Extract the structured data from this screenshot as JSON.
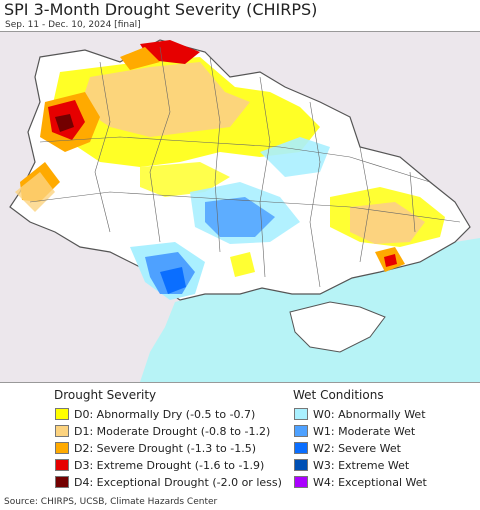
{
  "header": {
    "title": "SPI 3-Month Drought Severity (CHIRPS)",
    "subtitle": "Sep. 11 - Dec. 10, 2024 [final]"
  },
  "legend": {
    "drought_title": "Drought Severity",
    "wet_title": "Wet Conditions",
    "drought_items": [
      {
        "label": "D0: Abnormally Dry (-0.5 to -0.7)",
        "color": "#ffff00"
      },
      {
        "label": "D1: Moderate Drought (-0.8 to -1.2)",
        "color": "#fcd37f"
      },
      {
        "label": "D2: Severe Drought (-1.3 to -1.5)",
        "color": "#ffaa00"
      },
      {
        "label": "D3: Extreme Drought (-1.6 to -1.9)",
        "color": "#e60000"
      },
      {
        "label": "D4: Exceptional Drought (-2.0 or less)",
        "color": "#730000"
      }
    ],
    "wet_items": [
      {
        "label": "W0: Abnormally Wet",
        "color": "#aaf0ff"
      },
      {
        "label": "W1: Moderate Wet",
        "color": "#4ea1ff"
      },
      {
        "label": "W2: Severe Wet",
        "color": "#0a6eff"
      },
      {
        "label": "W3: Extreme Wet",
        "color": "#0050b4"
      },
      {
        "label": "W4: Exceptional Wet",
        "color": "#aa00ff"
      }
    ]
  },
  "map": {
    "sea_color": "#b7f3f6",
    "outside_color": "#ece7ec",
    "land_color": "#ffffff",
    "border_color": "#555555"
  },
  "footer": {
    "source": "Source: CHIRPS, UCSB, Climate Hazards Center"
  }
}
